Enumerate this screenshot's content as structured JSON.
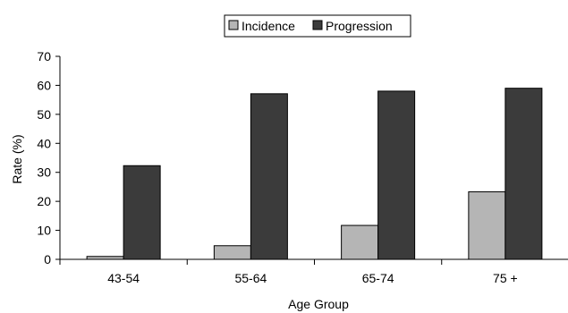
{
  "chart_data": {
    "type": "bar",
    "categories": [
      "43-54",
      "55-64",
      "65-74",
      "75 +"
    ],
    "series": [
      {
        "name": "Incidence",
        "values": [
          1,
          4.7,
          11.7,
          23.3
        ],
        "color": "#b5b5b5"
      },
      {
        "name": "Progression",
        "values": [
          32.3,
          57.1,
          58,
          59
        ],
        "color": "#3b3b3b"
      }
    ],
    "xlabel": "Age Group",
    "ylabel": "Rate (%)",
    "ylim": [
      0,
      70
    ],
    "yticks": [
      "0",
      "10",
      "20",
      "30",
      "40",
      "50",
      "60",
      "70"
    ],
    "grid": false,
    "legend_position": "top-center"
  }
}
